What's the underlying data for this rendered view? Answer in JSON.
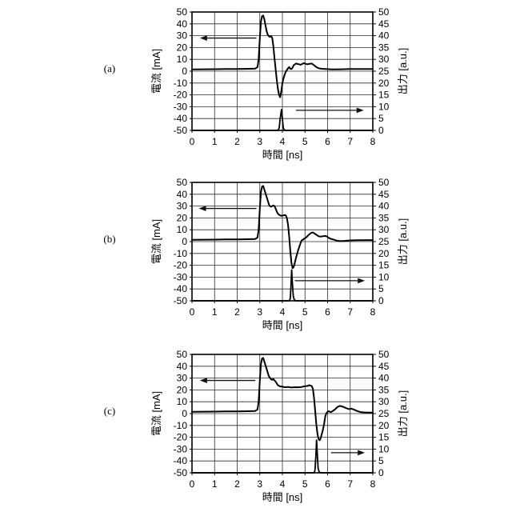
{
  "page": {
    "background_color": "#ffffff",
    "ink_color": "#000000"
  },
  "chart_data": [
    {
      "type": "line",
      "panel_label": "(a)",
      "xlabel": "時間 [ns]",
      "ylabel_left": "電流 [mA]",
      "ylabel_right": "出力 [a.u.]",
      "xlim": [
        0,
        8
      ],
      "x_tick_step": 1,
      "ylim_left": [
        -50,
        50
      ],
      "yleft_tick_step": 10,
      "ylim_right": [
        0,
        50
      ],
      "yright_tick_step": 5,
      "grid": true,
      "legend": "none",
      "series": [
        {
          "name": "電流",
          "axis": "left",
          "points": [
            [
              0,
              1.5
            ],
            [
              0.5,
              1.6
            ],
            [
              1,
              1.7
            ],
            [
              1.5,
              1.8
            ],
            [
              2,
              1.9
            ],
            [
              2.5,
              2
            ],
            [
              2.8,
              2.2
            ],
            [
              2.9,
              3.5
            ],
            [
              2.95,
              10
            ],
            [
              3.0,
              28
            ],
            [
              3.05,
              42
            ],
            [
              3.1,
              46.5
            ],
            [
              3.15,
              47
            ],
            [
              3.2,
              44
            ],
            [
              3.25,
              39
            ],
            [
              3.3,
              34
            ],
            [
              3.35,
              31
            ],
            [
              3.4,
              29.5
            ],
            [
              3.45,
              29
            ],
            [
              3.5,
              29.8
            ],
            [
              3.55,
              28
            ],
            [
              3.6,
              21
            ],
            [
              3.65,
              11
            ],
            [
              3.7,
              2
            ],
            [
              3.75,
              -7
            ],
            [
              3.8,
              -15
            ],
            [
              3.85,
              -20
            ],
            [
              3.9,
              -22
            ],
            [
              3.95,
              -17
            ],
            [
              4.0,
              -10
            ],
            [
              4.05,
              -6
            ],
            [
              4.1,
              -3
            ],
            [
              4.15,
              -0.5
            ],
            [
              4.2,
              1
            ],
            [
              4.25,
              2.5
            ],
            [
              4.3,
              3.5
            ],
            [
              4.35,
              2
            ],
            [
              4.4,
              1.8
            ],
            [
              4.45,
              3
            ],
            [
              4.5,
              5
            ],
            [
              4.6,
              6.5
            ],
            [
              4.7,
              6
            ],
            [
              4.8,
              5.5
            ],
            [
              4.85,
              5.8
            ],
            [
              4.95,
              6.8
            ],
            [
              5.0,
              6.5
            ],
            [
              5.1,
              5.8
            ],
            [
              5.2,
              6.2
            ],
            [
              5.3,
              6.5
            ],
            [
              5.4,
              5
            ],
            [
              5.5,
              3.5
            ],
            [
              5.6,
              2.5
            ],
            [
              5.75,
              2
            ],
            [
              5.9,
              1.8
            ],
            [
              6.2,
              1.5
            ],
            [
              6.6,
              1.6
            ],
            [
              7.0,
              1.8
            ],
            [
              7.5,
              1.8
            ],
            [
              8,
              1.8
            ]
          ]
        },
        {
          "name": "出力",
          "axis": "right",
          "points": [
            [
              0,
              0
            ],
            [
              3.8,
              0
            ],
            [
              3.86,
              1
            ],
            [
              3.9,
              5
            ],
            [
              3.96,
              8.8
            ],
            [
              4.0,
              5
            ],
            [
              4.04,
              1
            ],
            [
              4.08,
              0.2
            ],
            [
              4.15,
              0
            ],
            [
              8,
              0
            ]
          ]
        }
      ],
      "arrows": {
        "left": {
          "y_mA": 28,
          "x_tail": 2.85,
          "x_head": 0.35,
          "direction": "left"
        },
        "right": {
          "y_mA": -33,
          "x_tail": 4.6,
          "x_head": 7.6,
          "direction": "right"
        }
      }
    },
    {
      "type": "line",
      "panel_label": "(b)",
      "xlabel": "時間 [ns]",
      "ylabel_left": "電流 [mA]",
      "ylabel_right": "出力 [a.u.]",
      "xlim": [
        0,
        8
      ],
      "x_tick_step": 1,
      "ylim_left": [
        -50,
        50
      ],
      "yleft_tick_step": 10,
      "ylim_right": [
        0,
        50
      ],
      "yright_tick_step": 5,
      "grid": true,
      "legend": "none",
      "series": [
        {
          "name": "電流",
          "axis": "left",
          "points": [
            [
              0,
              1.5
            ],
            [
              0.5,
              1.6
            ],
            [
              1,
              1.7
            ],
            [
              1.5,
              1.8
            ],
            [
              2,
              1.9
            ],
            [
              2.5,
              2
            ],
            [
              2.8,
              2.2
            ],
            [
              2.9,
              3.5
            ],
            [
              2.95,
              10
            ],
            [
              3.0,
              28
            ],
            [
              3.05,
              42
            ],
            [
              3.1,
              46.5
            ],
            [
              3.15,
              47
            ],
            [
              3.2,
              44
            ],
            [
              3.3,
              38
            ],
            [
              3.4,
              31.5
            ],
            [
              3.45,
              29.8
            ],
            [
              3.5,
              29.5
            ],
            [
              3.6,
              30.5
            ],
            [
              3.65,
              30
            ],
            [
              3.7,
              28
            ],
            [
              3.75,
              25.5
            ],
            [
              3.8,
              23.5
            ],
            [
              3.9,
              22
            ],
            [
              4.0,
              21.8
            ],
            [
              4.1,
              22.5
            ],
            [
              4.15,
              22
            ],
            [
              4.2,
              20
            ],
            [
              4.25,
              14
            ],
            [
              4.3,
              4
            ],
            [
              4.35,
              -8
            ],
            [
              4.4,
              -18
            ],
            [
              4.45,
              -22.5
            ],
            [
              4.5,
              -21.5
            ],
            [
              4.55,
              -18
            ],
            [
              4.6,
              -14
            ],
            [
              4.7,
              -7
            ],
            [
              4.8,
              -1.5
            ],
            [
              4.85,
              1
            ],
            [
              4.9,
              1.5
            ],
            [
              4.95,
              2.2
            ],
            [
              5.05,
              3.5
            ],
            [
              5.15,
              5.5
            ],
            [
              5.25,
              7
            ],
            [
              5.3,
              7.5
            ],
            [
              5.35,
              7.8
            ],
            [
              5.4,
              7
            ],
            [
              5.5,
              5.8
            ],
            [
              5.6,
              4.5
            ],
            [
              5.7,
              4.2
            ],
            [
              5.8,
              4.6
            ],
            [
              5.9,
              4.8
            ],
            [
              6.0,
              4
            ],
            [
              6.05,
              3.2
            ],
            [
              6.15,
              2.3
            ],
            [
              6.25,
              1.8
            ],
            [
              6.4,
              0.8
            ],
            [
              6.55,
              0.4
            ],
            [
              6.75,
              0.6
            ],
            [
              7.0,
              1
            ],
            [
              7.3,
              1.2
            ],
            [
              8,
              1.3
            ]
          ]
        },
        {
          "name": "出力",
          "axis": "right",
          "points": [
            [
              0,
              0
            ],
            [
              4.3,
              0
            ],
            [
              4.35,
              1
            ],
            [
              4.38,
              6
            ],
            [
              4.41,
              13
            ],
            [
              4.44,
              8
            ],
            [
              4.48,
              2
            ],
            [
              4.53,
              0.3
            ],
            [
              4.6,
              0
            ],
            [
              8,
              0
            ]
          ]
        }
      ],
      "arrows": {
        "left": {
          "y_mA": 28,
          "x_tail": 2.85,
          "x_head": 0.3,
          "direction": "left"
        },
        "right": {
          "y_mA": -33,
          "x_tail": 4.55,
          "x_head": 7.65,
          "direction": "right"
        }
      }
    },
    {
      "type": "line",
      "panel_label": "(c)",
      "xlabel": "時間 [ns]",
      "ylabel_left": "電流 [mA]",
      "ylabel_right": "出力 [a.u.]",
      "xlim": [
        0,
        8
      ],
      "x_tick_step": 1,
      "ylim_left": [
        -50,
        50
      ],
      "yleft_tick_step": 10,
      "ylim_right": [
        0,
        50
      ],
      "yright_tick_step": 5,
      "grid": true,
      "legend": "none",
      "series": [
        {
          "name": "電流",
          "axis": "left",
          "points": [
            [
              0,
              1.5
            ],
            [
              0.5,
              1.6
            ],
            [
              1,
              1.7
            ],
            [
              1.5,
              1.8
            ],
            [
              2,
              1.9
            ],
            [
              2.5,
              2
            ],
            [
              2.8,
              2.2
            ],
            [
              2.9,
              3.5
            ],
            [
              2.95,
              10
            ],
            [
              3.0,
              28
            ],
            [
              3.05,
              42
            ],
            [
              3.1,
              46.5
            ],
            [
              3.15,
              47
            ],
            [
              3.2,
              44
            ],
            [
              3.3,
              38
            ],
            [
              3.4,
              31.5
            ],
            [
              3.5,
              29
            ],
            [
              3.55,
              28.5
            ],
            [
              3.6,
              29.2
            ],
            [
              3.7,
              27
            ],
            [
              3.8,
              24
            ],
            [
              3.9,
              23
            ],
            [
              4.0,
              22.8
            ],
            [
              4.1,
              22.3
            ],
            [
              4.25,
              22.5
            ],
            [
              4.4,
              22
            ],
            [
              4.55,
              22.3
            ],
            [
              4.7,
              22.2
            ],
            [
              4.85,
              22.5
            ],
            [
              5.0,
              23.2
            ],
            [
              5.1,
              23.3
            ],
            [
              5.2,
              24
            ],
            [
              5.3,
              23.2
            ],
            [
              5.35,
              21
            ],
            [
              5.4,
              13
            ],
            [
              5.45,
              2
            ],
            [
              5.5,
              -9
            ],
            [
              5.55,
              -17
            ],
            [
              5.6,
              -21.5
            ],
            [
              5.65,
              -22.5
            ],
            [
              5.7,
              -20.5
            ],
            [
              5.8,
              -13
            ],
            [
              5.85,
              -8
            ],
            [
              5.9,
              -2
            ],
            [
              5.95,
              0.5
            ],
            [
              6.0,
              1.5
            ],
            [
              6.05,
              2
            ],
            [
              6.1,
              1.5
            ],
            [
              6.15,
              1.2
            ],
            [
              6.25,
              2.5
            ],
            [
              6.35,
              4
            ],
            [
              6.45,
              5.8
            ],
            [
              6.55,
              6.5
            ],
            [
              6.65,
              6
            ],
            [
              6.8,
              4.8
            ],
            [
              6.95,
              3.8
            ],
            [
              7.05,
              4.2
            ],
            [
              7.15,
              3.5
            ],
            [
              7.3,
              2.2
            ],
            [
              7.45,
              1.3
            ],
            [
              7.6,
              1
            ],
            [
              7.8,
              0.9
            ],
            [
              8,
              0.9
            ]
          ]
        },
        {
          "name": "出力",
          "axis": "right",
          "points": [
            [
              0,
              0
            ],
            [
              5.4,
              0
            ],
            [
              5.44,
              1
            ],
            [
              5.48,
              7
            ],
            [
              5.51,
              13.8
            ],
            [
              5.54,
              9
            ],
            [
              5.58,
              2
            ],
            [
              5.63,
              0.3
            ],
            [
              5.7,
              0
            ],
            [
              8,
              0
            ]
          ]
        }
      ],
      "arrows": {
        "left": {
          "y_mA": 28,
          "x_tail": 2.8,
          "x_head": 0.35,
          "direction": "left"
        },
        "right": {
          "y_mA": -33,
          "x_tail": 6.15,
          "x_head": 7.65,
          "direction": "right"
        }
      }
    }
  ]
}
